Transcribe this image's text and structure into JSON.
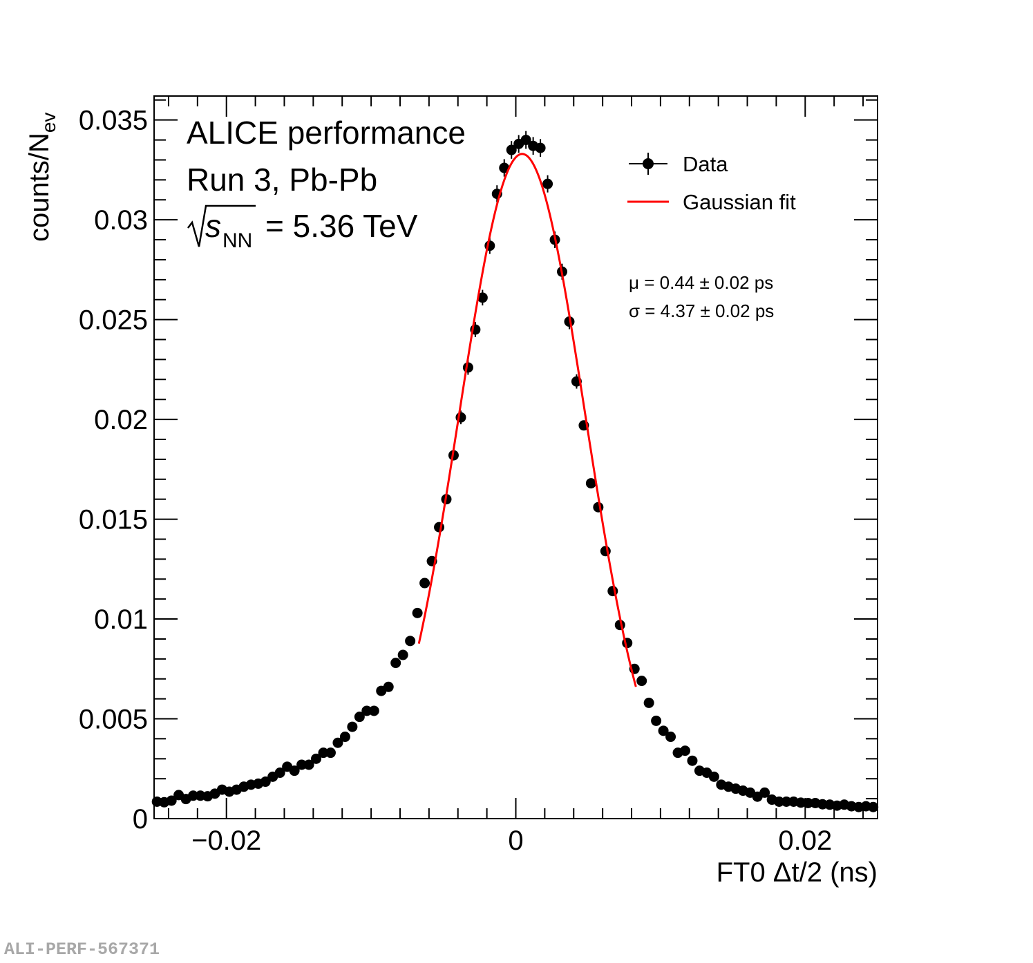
{
  "chart_data": {
    "type": "scatter",
    "title": "",
    "annotations": {
      "line1": "ALICE performance",
      "line2": "Run 3, Pb-Pb",
      "energy_sqrt": "s",
      "energy_sub": "NN",
      "energy_value": "= 5.36 TeV",
      "mu_text": "μ = 0.44 ± 0.02 ps",
      "sigma_text": "σ = 4.37 ± 0.02 ps"
    },
    "xlabel": "FT0 Δt/2 (ns)",
    "ylabel_main": "counts/N",
    "ylabel_sub": "ev",
    "xlim": [
      -0.025,
      0.025
    ],
    "ylim": [
      0,
      0.0362
    ],
    "x_ticks": [
      {
        "value": -0.02,
        "label": "−0.02"
      },
      {
        "value": 0,
        "label": "0"
      },
      {
        "value": 0.02,
        "label": "0.02"
      }
    ],
    "y_ticks": [
      {
        "value": 0,
        "label": "0"
      },
      {
        "value": 0.005,
        "label": "0.005"
      },
      {
        "value": 0.01,
        "label": "0.01"
      },
      {
        "value": 0.015,
        "label": "0.015"
      },
      {
        "value": 0.02,
        "label": "0.02"
      },
      {
        "value": 0.025,
        "label": "0.025"
      },
      {
        "value": 0.03,
        "label": "0.03"
      },
      {
        "value": 0.035,
        "label": "0.035"
      }
    ],
    "legend": {
      "position": "top-right",
      "entries": [
        {
          "label": "Data",
          "style": "marker",
          "color": "#000000"
        },
        {
          "label": "Gaussian fit",
          "style": "line",
          "color": "#ff0000"
        }
      ]
    },
    "series": [
      {
        "name": "Data",
        "color": "#000000",
        "x": [
          -0.0248,
          -0.0243,
          -0.0238,
          -0.0233,
          -0.0228,
          -0.0223,
          -0.0218,
          -0.0213,
          -0.0208,
          -0.0203,
          -0.0198,
          -0.0193,
          -0.0188,
          -0.0183,
          -0.0178,
          -0.0173,
          -0.0168,
          -0.0163,
          -0.0158,
          -0.0153,
          -0.0148,
          -0.0143,
          -0.0138,
          -0.0133,
          -0.0128,
          -0.0123,
          -0.0118,
          -0.0113,
          -0.0108,
          -0.0103,
          -0.0098,
          -0.0093,
          -0.0088,
          -0.0083,
          -0.0078,
          -0.0073,
          -0.0068,
          -0.0063,
          -0.0058,
          -0.0053,
          -0.0048,
          -0.0043,
          -0.0038,
          -0.0033,
          -0.0028,
          -0.0023,
          -0.0018,
          -0.0013,
          -0.0008,
          -0.0003,
          0.0002,
          0.0007,
          0.0012,
          0.0017,
          0.0022,
          0.0027,
          0.0032,
          0.0037,
          0.0042,
          0.0047,
          0.0052,
          0.0057,
          0.0062,
          0.0067,
          0.0072,
          0.0077,
          0.0082,
          0.0087,
          0.0092,
          0.0097,
          0.0102,
          0.0107,
          0.0112,
          0.0117,
          0.0122,
          0.0127,
          0.0132,
          0.0137,
          0.0142,
          0.0147,
          0.0152,
          0.0157,
          0.0162,
          0.0167,
          0.0172,
          0.0177,
          0.0182,
          0.0187,
          0.0192,
          0.0197,
          0.0202,
          0.0207,
          0.0212,
          0.0217,
          0.0222,
          0.0227,
          0.0232,
          0.0237,
          0.0242,
          0.0247
        ],
        "y": [
          0.00085,
          0.00082,
          0.0009,
          0.00118,
          0.00098,
          0.00115,
          0.00115,
          0.00112,
          0.00125,
          0.00145,
          0.00135,
          0.00145,
          0.0016,
          0.0017,
          0.00175,
          0.00185,
          0.0021,
          0.0023,
          0.0026,
          0.0024,
          0.0027,
          0.0027,
          0.003,
          0.0033,
          0.0033,
          0.0038,
          0.0041,
          0.0046,
          0.0051,
          0.0054,
          0.0054,
          0.0064,
          0.0066,
          0.0078,
          0.0082,
          0.0089,
          0.0103,
          0.0118,
          0.0129,
          0.0146,
          0.016,
          0.0182,
          0.0201,
          0.0226,
          0.0245,
          0.0261,
          0.0287,
          0.0313,
          0.0326,
          0.0335,
          0.0338,
          0.034,
          0.0337,
          0.0336,
          0.0318,
          0.029,
          0.0274,
          0.0249,
          0.0219,
          0.0197,
          0.0168,
          0.0156,
          0.0134,
          0.0114,
          0.0097,
          0.0088,
          0.0075,
          0.0069,
          0.0058,
          0.0049,
          0.0044,
          0.0041,
          0.0033,
          0.0034,
          0.0029,
          0.0024,
          0.0023,
          0.0021,
          0.0017,
          0.0016,
          0.0015,
          0.0014,
          0.0013,
          0.0011,
          0.0013,
          0.00095,
          0.00085,
          0.00085,
          0.00085,
          0.0008,
          0.00078,
          0.00078,
          0.00072,
          0.0007,
          0.00065,
          0.0007,
          0.00062,
          0.00058,
          0.00062,
          0.00058
        ]
      },
      {
        "name": "Gaussian fit",
        "color": "#ff0000",
        "function": "gaussian",
        "amplitude": 0.0333,
        "mean": 0.00044,
        "sigma": 0.00437,
        "range": [
          -0.0067,
          0.0083
        ]
      }
    ]
  },
  "watermark": "ALI-PERF-567371"
}
